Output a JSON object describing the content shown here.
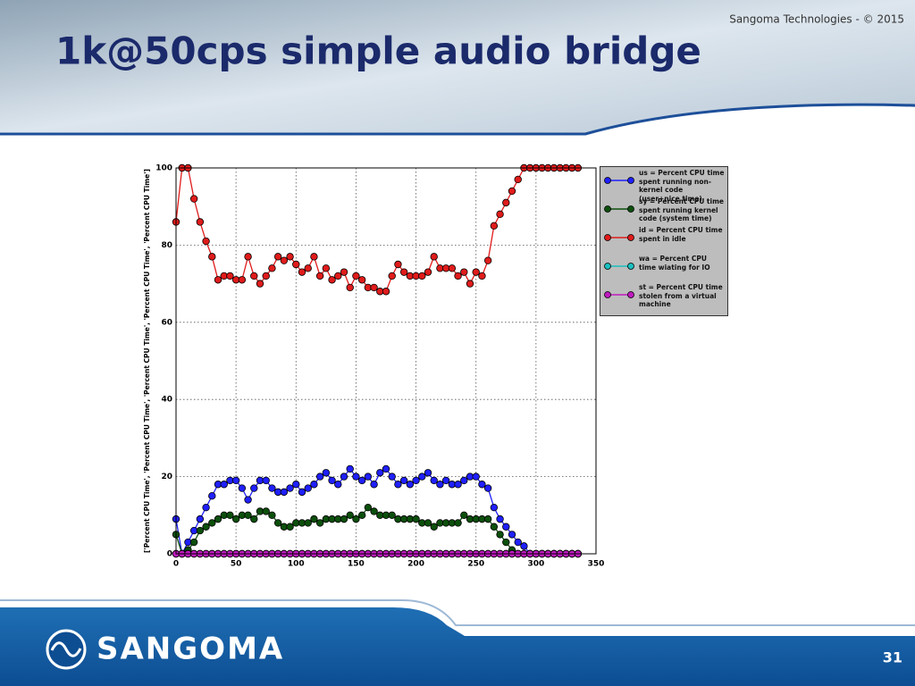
{
  "slide": {
    "title": "1k@50cps simple audio bridge",
    "copyright": "Sangoma Technologies - © 2015",
    "logo": "SANGOMA",
    "page_number": "31"
  },
  "chart_data": {
    "type": "line",
    "y_label": "['Percent CPU Time', 'Percent CPU Time', 'Percent CPU Time', 'Percent CPU Time', 'Percent CPU Time']",
    "x": [
      0,
      5,
      10,
      15,
      20,
      25,
      30,
      35,
      40,
      45,
      50,
      55,
      60,
      65,
      70,
      75,
      80,
      85,
      90,
      95,
      100,
      105,
      110,
      115,
      120,
      125,
      130,
      135,
      140,
      145,
      150,
      155,
      160,
      165,
      170,
      175,
      180,
      185,
      190,
      195,
      200,
      205,
      210,
      215,
      220,
      225,
      230,
      235,
      240,
      245,
      250,
      255,
      260,
      265,
      270,
      275,
      280,
      285,
      290,
      295,
      300,
      305,
      310,
      315,
      320,
      325,
      330,
      335
    ],
    "series": [
      {
        "name": "us = Percent CPU time spent running non-kernel code (user+nice time)",
        "color": "#1f1fff",
        "values": [
          9,
          0,
          3,
          6,
          9,
          12,
          15,
          18,
          18,
          19,
          19,
          17,
          14,
          17,
          19,
          19,
          17,
          16,
          16,
          17,
          18,
          16,
          17,
          18,
          20,
          21,
          19,
          18,
          20,
          22,
          20,
          19,
          20,
          18,
          21,
          22,
          20,
          18,
          19,
          18,
          19,
          20,
          21,
          19,
          18,
          19,
          18,
          18,
          19,
          20,
          20,
          18,
          17,
          12,
          9,
          7,
          5,
          3,
          2,
          0,
          0,
          0,
          0,
          0,
          0,
          0,
          0,
          0
        ]
      },
      {
        "name": "sy = Percent CPU time spent running kernel code (system time)",
        "color": "#0c4f0c",
        "values": [
          5,
          0,
          1,
          3,
          6,
          7,
          8,
          9,
          10,
          10,
          9,
          10,
          10,
          9,
          11,
          11,
          10,
          8,
          7,
          7,
          8,
          8,
          8,
          9,
          8,
          9,
          9,
          9,
          9,
          10,
          9,
          10,
          12,
          11,
          10,
          10,
          10,
          9,
          9,
          9,
          9,
          8,
          8,
          7,
          8,
          8,
          8,
          8,
          10,
          9,
          9,
          9,
          9,
          7,
          5,
          3,
          1,
          0,
          0,
          0,
          0,
          0,
          0,
          0,
          0,
          0,
          0,
          0
        ]
      },
      {
        "name": "id = Percent CPU time spent in idle",
        "color": "#e01b1b",
        "values": [
          86,
          100,
          100,
          92,
          86,
          81,
          77,
          71,
          72,
          72,
          71,
          71,
          77,
          72,
          70,
          72,
          74,
          77,
          76,
          77,
          75,
          73,
          74,
          77,
          72,
          74,
          71,
          72,
          73,
          69,
          72,
          71,
          69,
          69,
          68,
          68,
          72,
          75,
          73,
          72,
          72,
          72,
          73,
          77,
          74,
          74,
          74,
          72,
          73,
          70,
          73,
          72,
          76,
          85,
          88,
          91,
          94,
          97,
          100,
          100,
          100,
          100,
          100,
          100,
          100,
          100,
          100,
          100
        ]
      },
      {
        "name": "wa = Percent CPU time wiating for IO",
        "color": "#1abfbf",
        "values": [
          0,
          0,
          0,
          0,
          0,
          0,
          0,
          0,
          0,
          0,
          0,
          0,
          0,
          0,
          0,
          0,
          0,
          0,
          0,
          0,
          0,
          0,
          0,
          0,
          0,
          0,
          0,
          0,
          0,
          0,
          0,
          0,
          0,
          0,
          0,
          0,
          0,
          0,
          0,
          0,
          0,
          0,
          0,
          0,
          0,
          0,
          0,
          0,
          0,
          0,
          0,
          0,
          0,
          0,
          0,
          0,
          0,
          0,
          0,
          0,
          0,
          0,
          0,
          0,
          0,
          0,
          0,
          0
        ]
      },
      {
        "name": "st = Percent CPU time stolen from a virtual machine",
        "color": "#bf1abf",
        "values": [
          0,
          0,
          0,
          0,
          0,
          0,
          0,
          0,
          0,
          0,
          0,
          0,
          0,
          0,
          0,
          0,
          0,
          0,
          0,
          0,
          0,
          0,
          0,
          0,
          0,
          0,
          0,
          0,
          0,
          0,
          0,
          0,
          0,
          0,
          0,
          0,
          0,
          0,
          0,
          0,
          0,
          0,
          0,
          0,
          0,
          0,
          0,
          0,
          0,
          0,
          0,
          0,
          0,
          0,
          0,
          0,
          0,
          0,
          0,
          0,
          0,
          0,
          0,
          0,
          0,
          0,
          0,
          0
        ]
      }
    ],
    "xlim": [
      0,
      350
    ],
    "xticks": [
      0,
      50,
      100,
      150,
      200,
      250,
      300,
      350
    ],
    "ylim": [
      0,
      100
    ],
    "yticks": [
      0,
      20,
      40,
      60,
      80,
      100
    ],
    "grid": true,
    "legend": "outside right"
  }
}
